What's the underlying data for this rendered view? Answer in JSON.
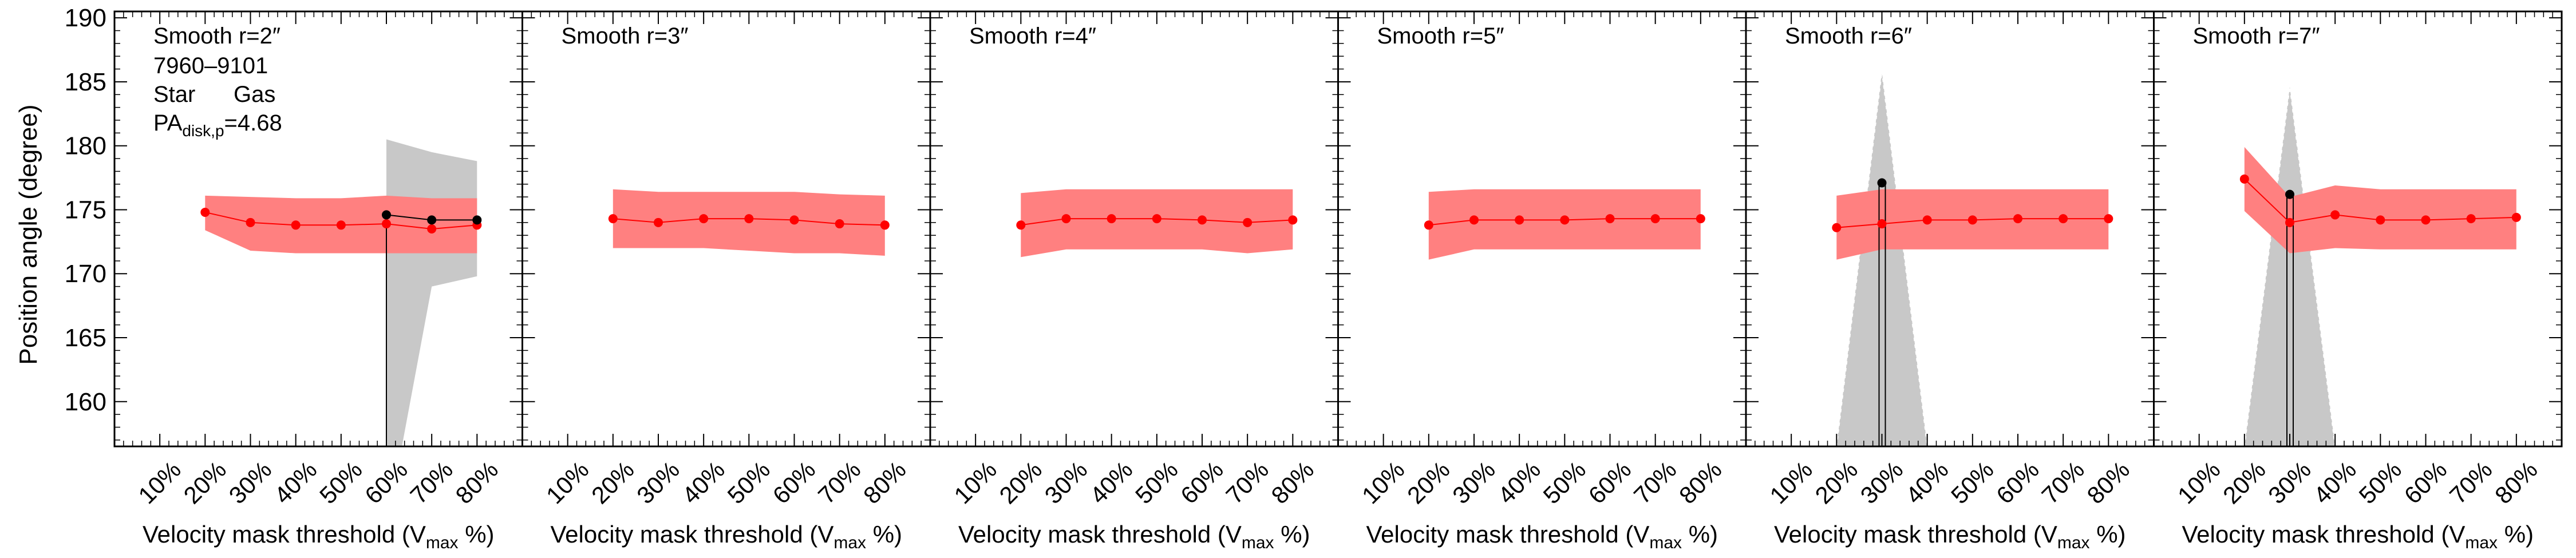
{
  "chart_data": {
    "type": "line",
    "ylabel": "Position angle (degree)",
    "xlabel_main": "Velocity mask threshold (V",
    "xlabel_sub": "max",
    "xlabel_tail": " %)",
    "ylim": [
      156.5,
      190.5
    ],
    "yticks": [
      160,
      165,
      170,
      175,
      180,
      185,
      190
    ],
    "xlim": [
      0,
      9
    ],
    "xtick_labels": [
      "10%",
      "20%",
      "30%",
      "40%",
      "50%",
      "60%",
      "70%",
      "80%"
    ],
    "legend": {
      "id": "7960–9101",
      "star": "Star",
      "gas": "Gas",
      "pa_main": "PA",
      "pa_sub": "disk,p",
      "pa_value": "=4.68"
    },
    "colors": {
      "gas_line": "#ff0000",
      "gas_band": "#ff8080",
      "star_line": "#000000",
      "star_band": "#c8c8c8",
      "gas_text": "#ff0000"
    },
    "panels": [
      {
        "title": "Smooth r=2″",
        "gas": {
          "x": [
            2,
            3,
            4,
            5,
            6,
            7,
            8
          ],
          "y": [
            174.8,
            174.0,
            173.8,
            173.8,
            173.9,
            173.5,
            173.8
          ],
          "lo": [
            173.4,
            171.8,
            171.6,
            171.6,
            171.6,
            171.6,
            171.6
          ],
          "hi": [
            176.1,
            176.0,
            175.9,
            175.9,
            176.1,
            175.9,
            175.9
          ]
        },
        "star": {
          "x": [
            6,
            7,
            8
          ],
          "y": [
            174.6,
            174.2,
            174.2
          ],
          "lo": [
            150,
            169.0,
            169.8
          ],
          "hi": [
            180.5,
            179.5,
            178.8
          ],
          "drop_from": 6
        }
      },
      {
        "title": "Smooth r=3″",
        "gas": {
          "x": [
            2,
            3,
            4,
            5,
            6,
            7,
            8
          ],
          "y": [
            174.3,
            174.0,
            174.3,
            174.3,
            174.2,
            173.9,
            173.8
          ],
          "lo": [
            172.0,
            172.0,
            172.0,
            171.8,
            171.6,
            171.6,
            171.4
          ],
          "hi": [
            176.6,
            176.4,
            176.4,
            176.4,
            176.4,
            176.2,
            176.1
          ]
        },
        "star": null
      },
      {
        "title": "Smooth r=4″",
        "gas": {
          "x": [
            2,
            3,
            4,
            5,
            6,
            7,
            8
          ],
          "y": [
            173.8,
            174.3,
            174.3,
            174.3,
            174.2,
            174.0,
            174.2
          ],
          "lo": [
            171.3,
            171.9,
            171.9,
            171.9,
            171.9,
            171.6,
            171.9
          ],
          "hi": [
            176.3,
            176.6,
            176.6,
            176.6,
            176.6,
            176.6,
            176.6
          ]
        },
        "star": null
      },
      {
        "title": "Smooth r=5″",
        "gas": {
          "x": [
            2,
            3,
            4,
            5,
            6,
            7,
            8
          ],
          "y": [
            173.8,
            174.2,
            174.2,
            174.2,
            174.3,
            174.3,
            174.3
          ],
          "lo": [
            171.1,
            171.9,
            171.9,
            171.9,
            171.9,
            171.9,
            171.9
          ],
          "hi": [
            176.4,
            176.6,
            176.6,
            176.6,
            176.6,
            176.6,
            176.6
          ]
        },
        "star": null
      },
      {
        "title": "Smooth r=6″",
        "gas": {
          "x": [
            2,
            3,
            4,
            5,
            6,
            7,
            8
          ],
          "y": [
            173.6,
            173.9,
            174.2,
            174.2,
            174.3,
            174.3,
            174.3
          ],
          "lo": [
            171.1,
            171.9,
            171.9,
            171.9,
            171.9,
            171.9,
            171.9
          ],
          "hi": [
            176.1,
            176.6,
            176.6,
            176.6,
            176.6,
            176.6,
            176.6
          ]
        },
        "star": {
          "x": [
            3
          ],
          "y": [
            177.1
          ],
          "lo": [
            156.5
          ],
          "hi": [
            185.8
          ],
          "spike": true
        }
      },
      {
        "title": "Smooth r=7″",
        "gas": {
          "x": [
            2,
            3,
            4,
            5,
            6,
            7,
            8
          ],
          "y": [
            177.4,
            174.0,
            174.6,
            174.2,
            174.2,
            174.3,
            174.4
          ],
          "lo": [
            174.9,
            171.6,
            172.0,
            171.9,
            171.9,
            171.9,
            171.9
          ],
          "hi": [
            179.9,
            176.0,
            176.9,
            176.6,
            176.6,
            176.6,
            176.6
          ]
        },
        "star": {
          "x": [
            3
          ],
          "y": [
            176.2
          ],
          "lo": [
            156.5
          ],
          "hi": [
            184.6
          ],
          "spike": true
        }
      }
    ]
  }
}
